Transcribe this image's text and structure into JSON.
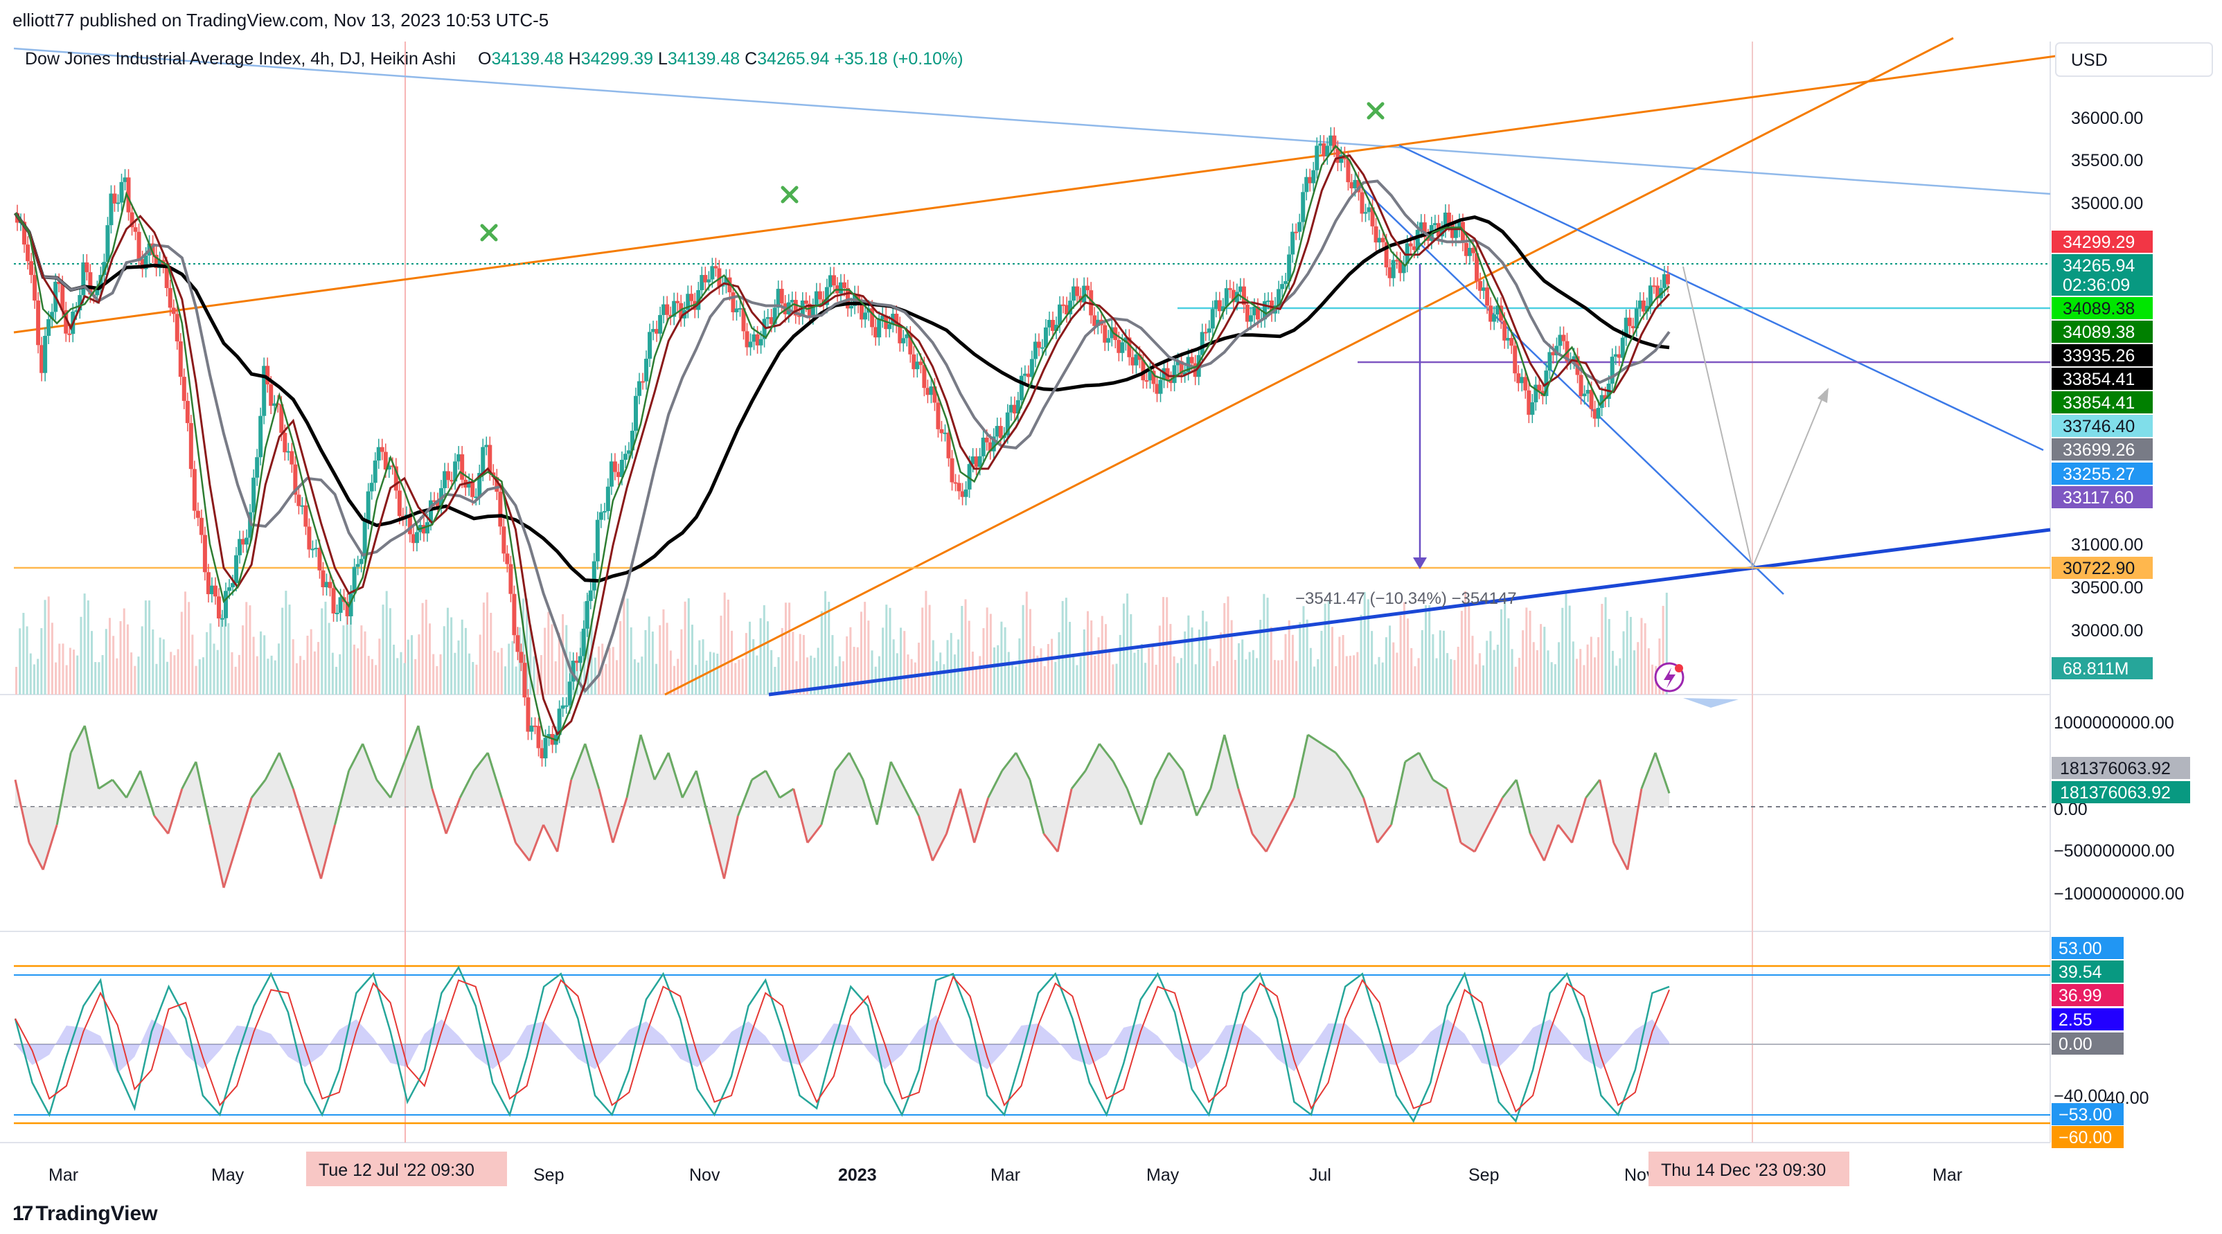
{
  "header": {
    "published": "elliott77 published on TradingView.com, Nov 13, 2023 10:53 UTC-5",
    "symbol": "Dow Jones Industrial Average Index, 4h, DJ, Heikin Ashi",
    "ohlc": [
      {
        "label": "O",
        "value": "34139.48"
      },
      {
        "label": "H",
        "value": "34299.39"
      },
      {
        "label": "L",
        "value": "34139.48"
      },
      {
        "label": "C",
        "value": "34265.94"
      }
    ],
    "change": "+35.18 (+0.10%)",
    "currency": "USD",
    "brand": "TradingView"
  },
  "colors": {
    "up": "#26a69a",
    "down": "#ef5350",
    "orange": "#f57c00",
    "blue": "#2962ff",
    "lightblue": "#5b9cf6",
    "black": "#000000",
    "green_ind": "#6aaa64",
    "red_ind": "#e06666"
  },
  "chart_data": [
    {
      "type": "line",
      "panel": "price",
      "y_axis_ticks": [
        "36000.00",
        "35500.00",
        "35000.00",
        "31000.00",
        "30500.00",
        "30000.00"
      ],
      "ylim": [
        30000,
        36500
      ],
      "x_labels": [
        "Mar",
        "May",
        "Sep",
        "Nov",
        "2023",
        "Mar",
        "May",
        "Jul",
        "Sep",
        "Nov",
        "Mar"
      ],
      "crosshair_labels": [
        "Tue 12 Jul '22   09:30",
        "Thu 14 Dec '23   09:30"
      ],
      "price_labels": [
        {
          "value": "34299.29",
          "color": "#f23645"
        },
        {
          "value": "34265.94",
          "color": "#089981"
        },
        {
          "value": "02:36:09",
          "color": "#089981"
        },
        {
          "value": "34089.38",
          "color": "#00e600"
        },
        {
          "value": "34089.38",
          "color": "#008000"
        },
        {
          "value": "33935.26",
          "color": "#000000"
        },
        {
          "value": "33854.41",
          "color": "#000000"
        },
        {
          "value": "33854.41",
          "color": "#008000"
        },
        {
          "value": "33746.40",
          "color": "#80deea"
        },
        {
          "value": "33699.26",
          "color": "#787b86"
        },
        {
          "value": "33255.27",
          "color": "#2196f3"
        },
        {
          "value": "33117.60",
          "color": "#7e57c2"
        },
        {
          "value": "30722.90",
          "color": "#ffb74d"
        },
        {
          "value": "68.811M",
          "color": "#26a69a"
        }
      ],
      "measure_label": "−3541.47 (−10.34%) −354147",
      "series_price": [
        35000,
        34600,
        33400,
        34300,
        33700,
        34400,
        34100,
        35100,
        35300,
        34500,
        34600,
        34300,
        33400,
        32000,
        31100,
        30800,
        31400,
        31800,
        33300,
        32900,
        32300,
        31700,
        31300,
        30900,
        30900,
        31500,
        32500,
        32400,
        31800,
        31600,
        31900,
        32200,
        32400,
        32000,
        32600,
        31800,
        30700,
        29700,
        29400,
        29600,
        30100,
        30600,
        31700,
        32300,
        32400,
        33200,
        33800,
        34000,
        34000,
        34100,
        34400,
        34300,
        34000,
        33600,
        33800,
        34100,
        34000,
        34000,
        34100,
        34300,
        34100,
        34000,
        33800,
        33900,
        33700,
        33400,
        33100,
        32600,
        32000,
        32400,
        32600,
        32700,
        33000,
        33400,
        33700,
        33900,
        34100,
        34200,
        33800,
        33700,
        33600,
        33400,
        33200,
        33300,
        33400,
        33400,
        33900,
        34100,
        34200,
        33900,
        34000,
        34100,
        34700,
        35300,
        35700,
        35700,
        35400,
        35100,
        34800,
        34400,
        34500,
        34800,
        34800,
        34900,
        34800,
        34500,
        34000,
        33900,
        33400,
        33000,
        33200,
        33700,
        33500,
        33100,
        32900,
        33400,
        33800,
        34000,
        34200,
        34270
      ]
    },
    {
      "type": "line",
      "panel": "volume_oscillator",
      "y_axis_ticks": [
        "1000000000.00",
        "0.00",
        "−500000000.00",
        "−1000000000.00"
      ],
      "value_labels": [
        {
          "value": "181376063.92",
          "color": "#b2b5be"
        },
        {
          "value": "181376063.92",
          "color": "#089981"
        }
      ],
      "ylim": [
        -1300000000,
        1300000000
      ],
      "series": [
        0.3,
        -0.4,
        -0.7,
        -0.2,
        0.6,
        0.9,
        0.2,
        0.3,
        0.1,
        0.4,
        -0.1,
        -0.3,
        0.2,
        0.5,
        -0.2,
        -0.9,
        -0.4,
        0.1,
        0.3,
        0.6,
        0.2,
        -0.3,
        -0.8,
        -0.2,
        0.4,
        0.7,
        0.3,
        0.1,
        0.5,
        0.9,
        0.2,
        -0.3,
        0.1,
        0.4,
        0.6,
        0.1,
        -0.4,
        -0.6,
        -0.2,
        -0.5,
        0.3,
        0.7,
        0.2,
        -0.4,
        0.1,
        0.8,
        0.3,
        0.6,
        0.1,
        0.4,
        -0.2,
        -0.8,
        -0.1,
        0.3,
        0.4,
        0.1,
        0.2,
        -0.4,
        -0.2,
        0.4,
        0.6,
        0.3,
        -0.2,
        0.5,
        0.2,
        -0.1,
        -0.6,
        -0.3,
        0.2,
        -0.4,
        0.1,
        0.4,
        0.6,
        0.3,
        -0.3,
        -0.5,
        0.2,
        0.4,
        0.7,
        0.5,
        0.2,
        -0.2,
        0.3,
        0.6,
        0.4,
        -0.1,
        0.2,
        0.8,
        0.2,
        -0.3,
        -0.5,
        -0.2,
        0.1,
        0.8,
        0.7,
        0.6,
        0.4,
        0.1,
        -0.4,
        -0.2,
        0.5,
        0.6,
        0.3,
        0.2,
        -0.4,
        -0.5,
        -0.2,
        0.1,
        0.3,
        -0.3,
        -0.6,
        -0.2,
        -0.4,
        0.1,
        0.3,
        -0.4,
        -0.7,
        0.2,
        0.6,
        0.15
      ]
    },
    {
      "type": "line",
      "panel": "stochastic_rsi",
      "y_axis_ticks": [
        "40.00"
      ],
      "level_labels": [
        {
          "value": "53.00",
          "color": "#2196f3"
        },
        {
          "value": "39.54",
          "color": "#089981"
        },
        {
          "value": "36.99",
          "color": "#e91e63"
        },
        {
          "value": "2.55",
          "color": "#2200ff"
        },
        {
          "value": "0.00",
          "color": "#787b86"
        },
        {
          "value": "−40.00",
          "color": "#131722"
        },
        {
          "value": "−53.00",
          "color": "#2196f3"
        },
        {
          "value": "−60.00",
          "color": "#ff9800"
        }
      ],
      "ylim": [
        -65,
        65
      ],
      "series_k": [
        20,
        -30,
        -55,
        -10,
        30,
        50,
        -20,
        -50,
        10,
        45,
        20,
        -40,
        -55,
        -10,
        30,
        55,
        25,
        -30,
        -55,
        -20,
        40,
        55,
        10,
        -45,
        -20,
        40,
        60,
        30,
        -30,
        -55,
        -10,
        45,
        55,
        20,
        -40,
        -55,
        -20,
        35,
        55,
        20,
        -35,
        -55,
        -25,
        30,
        50,
        10,
        -40,
        -50,
        0,
        45,
        30,
        -30,
        -55,
        -20,
        50,
        55,
        20,
        -40,
        -55,
        -10,
        40,
        55,
        20,
        -30,
        -55,
        -15,
        35,
        55,
        25,
        -35,
        -55,
        -10,
        40,
        55,
        20,
        -45,
        -55,
        -5,
        45,
        55,
        10,
        -40,
        -60,
        -30,
        30,
        55,
        10,
        -45,
        -60,
        -20,
        40,
        55,
        20,
        -40,
        -55,
        -20,
        40,
        45
      ]
    }
  ]
}
